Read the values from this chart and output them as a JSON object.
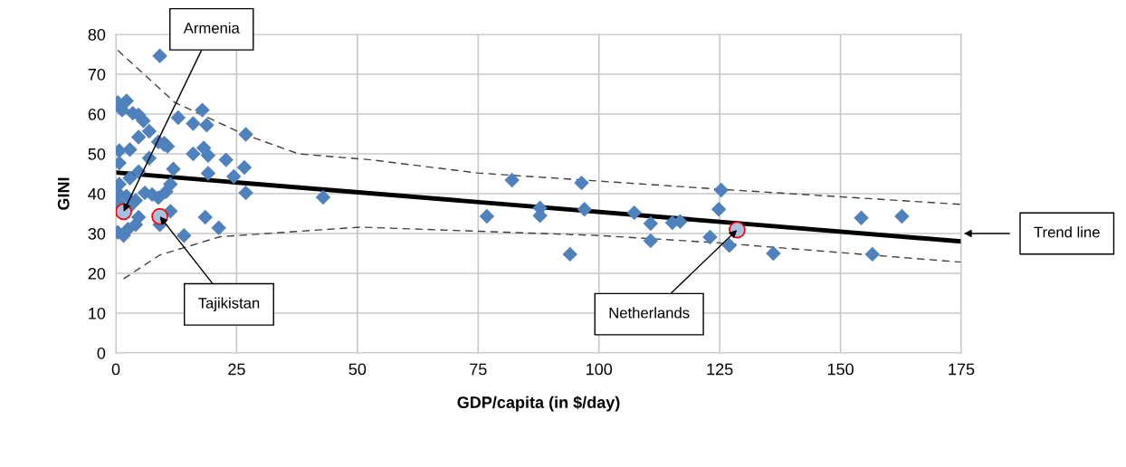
{
  "chart_data": {
    "type": "scatter",
    "xlabel": "GDP/capita (in $/day)",
    "ylabel": "GINI",
    "xlim": [
      0,
      175
    ],
    "xticks": [
      0,
      25,
      50,
      75,
      100,
      125,
      150,
      175
    ],
    "ylim": [
      0,
      80
    ],
    "yticks": [
      0,
      10,
      20,
      30,
      40,
      50,
      60,
      70,
      80
    ],
    "grid": true,
    "legend": false,
    "series": [
      {
        "marker": "diamond",
        "color": "#4f81bd",
        "x": [
          9.1,
          0.4,
          2.2,
          1.3,
          3.5,
          4.7,
          5.7,
          12.9,
          17.9,
          16.0,
          18.8,
          26.9,
          6.9,
          4.7,
          8.8,
          10.0,
          0.7,
          2.9,
          10.0,
          10.7,
          16.0,
          18.2,
          19.1,
          22.8,
          0.7,
          6.9,
          11.9,
          19.1,
          24.4,
          26.6,
          4.7,
          2.9,
          0.7,
          11.3,
          10.4,
          6.0,
          7.5,
          26.9,
          8.8,
          0.4,
          2.2,
          0.4,
          4.1,
          2.6,
          4.7,
          11.3,
          18.5,
          0.4,
          2.5,
          4.1,
          9.1,
          14.1,
          21.3,
          1.6,
          42.9,
          76.8,
          82.0,
          87.8,
          87.8,
          94.0,
          96.4,
          97.0,
          107.3,
          110.7,
          110.7,
          115.2,
          116.8,
          124.8,
          125.3,
          123.0,
          127.0,
          136.1,
          154.3,
          162.7,
          156.6
        ],
        "values": [
          74.6,
          62.9,
          63.3,
          61.0,
          60.2,
          59.8,
          58.3,
          59.1,
          61.0,
          57.6,
          57.2,
          54.9,
          55.7,
          54.2,
          53.0,
          52.7,
          50.8,
          51.1,
          52.3,
          51.9,
          50.0,
          51.5,
          49.6,
          48.5,
          47.7,
          48.9,
          46.2,
          45.1,
          44.3,
          46.6,
          45.5,
          43.9,
          42.4,
          42.4,
          40.5,
          40.2,
          39.8,
          40.2,
          39.0,
          40.2,
          39.4,
          37.9,
          38.3,
          36.4,
          34.1,
          35.6,
          34.1,
          30.3,
          31.1,
          32.2,
          32.2,
          29.5,
          31.4,
          29.5,
          39.1,
          34.3,
          43.4,
          36.4,
          34.5,
          24.8,
          42.7,
          36.1,
          35.2,
          32.5,
          28.2,
          32.7,
          33.0,
          36.1,
          40.9,
          29.1,
          27.0,
          25.0,
          33.9,
          34.3,
          24.8
        ]
      },
      {
        "marker": "circle",
        "color": "#ff0000",
        "x": [
          1.6,
          9.1,
          128.6
        ],
        "values": [
          35.5,
          34.3,
          30.9
        ]
      },
      {
        "type": "line",
        "marker": "none",
        "line_style": "solid",
        "color": "#000000",
        "x": [
          0,
          175
        ],
        "values": [
          45.3,
          28.0
        ]
      },
      {
        "type": "line",
        "marker": "none",
        "line_style": "dashed",
        "color": "#404040",
        "x": [
          0.4,
          12.2,
          26.6,
          37.8,
          52.8,
          74.9,
          125.3,
          175
        ],
        "values": [
          76,
          62.9,
          54.9,
          50,
          48.5,
          45.2,
          41.1,
          37.3
        ]
      },
      {
        "type": "line",
        "marker": "none",
        "line_style": "dashed",
        "color": "#404040",
        "x": [
          1.6,
          9.1,
          21.6,
          50.7,
          100,
          124.2,
          175
        ],
        "values": [
          18.6,
          24.6,
          29.2,
          31.6,
          29.5,
          27.7,
          22.8
        ]
      }
    ],
    "annotations": [
      {
        "text": "Armenia",
        "x": 1.6,
        "y": 35.5
      },
      {
        "text": "Tajikistan",
        "x": 9.1,
        "y": 34.3
      },
      {
        "text": "Netherlands",
        "x": 128.6,
        "y": 30.9
      },
      "Trend line"
    ]
  }
}
